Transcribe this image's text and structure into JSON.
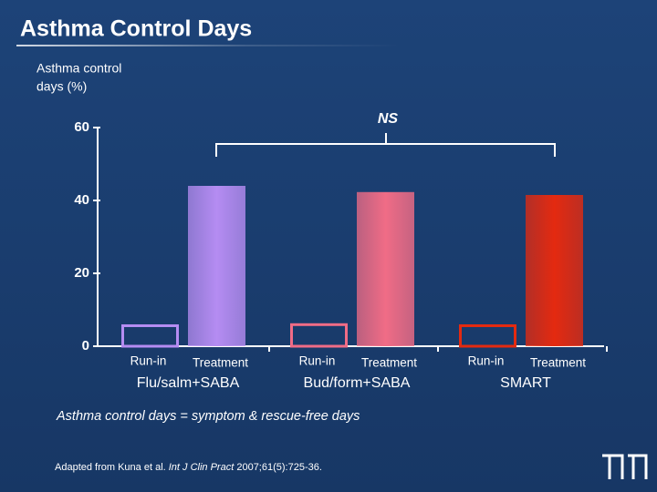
{
  "chart_data": {
    "type": "bar",
    "title": "Asthma Control Days",
    "y_label_lines": [
      "Asthma control",
      "days (%)"
    ],
    "categories": [
      "Flu/salm+SABA",
      "Bud/form+SABA",
      "SMART"
    ],
    "series": [
      {
        "name": "Run-in",
        "values": [
          6,
          6.3,
          6
        ]
      },
      {
        "name": "Treatment",
        "values": [
          44,
          42.3,
          41.5
        ]
      }
    ],
    "colors": [
      "#b58cf2",
      "#f06c86",
      "#e42a10"
    ],
    "ylim": [
      0,
      60
    ],
    "yticks": [
      0,
      20,
      40,
      60
    ],
    "annotation": "NS",
    "footnote": "Asthma control days = symptom & rescue-free days",
    "source_parts": [
      "Adapted from Kuna et al. ",
      "Int J Clin Pract",
      " 2007;61(5):725-36."
    ]
  }
}
